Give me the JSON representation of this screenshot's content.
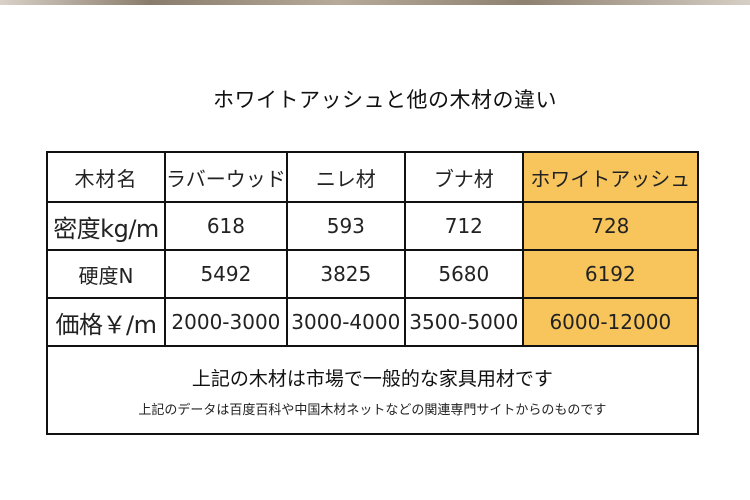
{
  "title": "ホワイトアッシュと他の木材の違い",
  "table": {
    "header": {
      "label": "木材名",
      "woods": [
        "ラバーウッド",
        "ニレ材",
        "ブナ材",
        "ホワイトアッシュ"
      ]
    },
    "rows": [
      {
        "label": "密度kg/m",
        "values": [
          "618",
          "593",
          "712",
          "728"
        ]
      },
      {
        "label": "硬度N",
        "values": [
          "5492",
          "3825",
          "5680",
          "6192"
        ]
      },
      {
        "label": "価格￥/m",
        "values": [
          "2000-3000",
          "3000-4000",
          "3500-5000",
          "6000-12000"
        ]
      }
    ],
    "highlight_color": "#f7c55c"
  },
  "footer": {
    "main": "上記の木材は市場で一般的な家具用材です",
    "sub": "上記のデータは百度百科や中国木材ネットなどの関連専門サイトからのものです"
  }
}
